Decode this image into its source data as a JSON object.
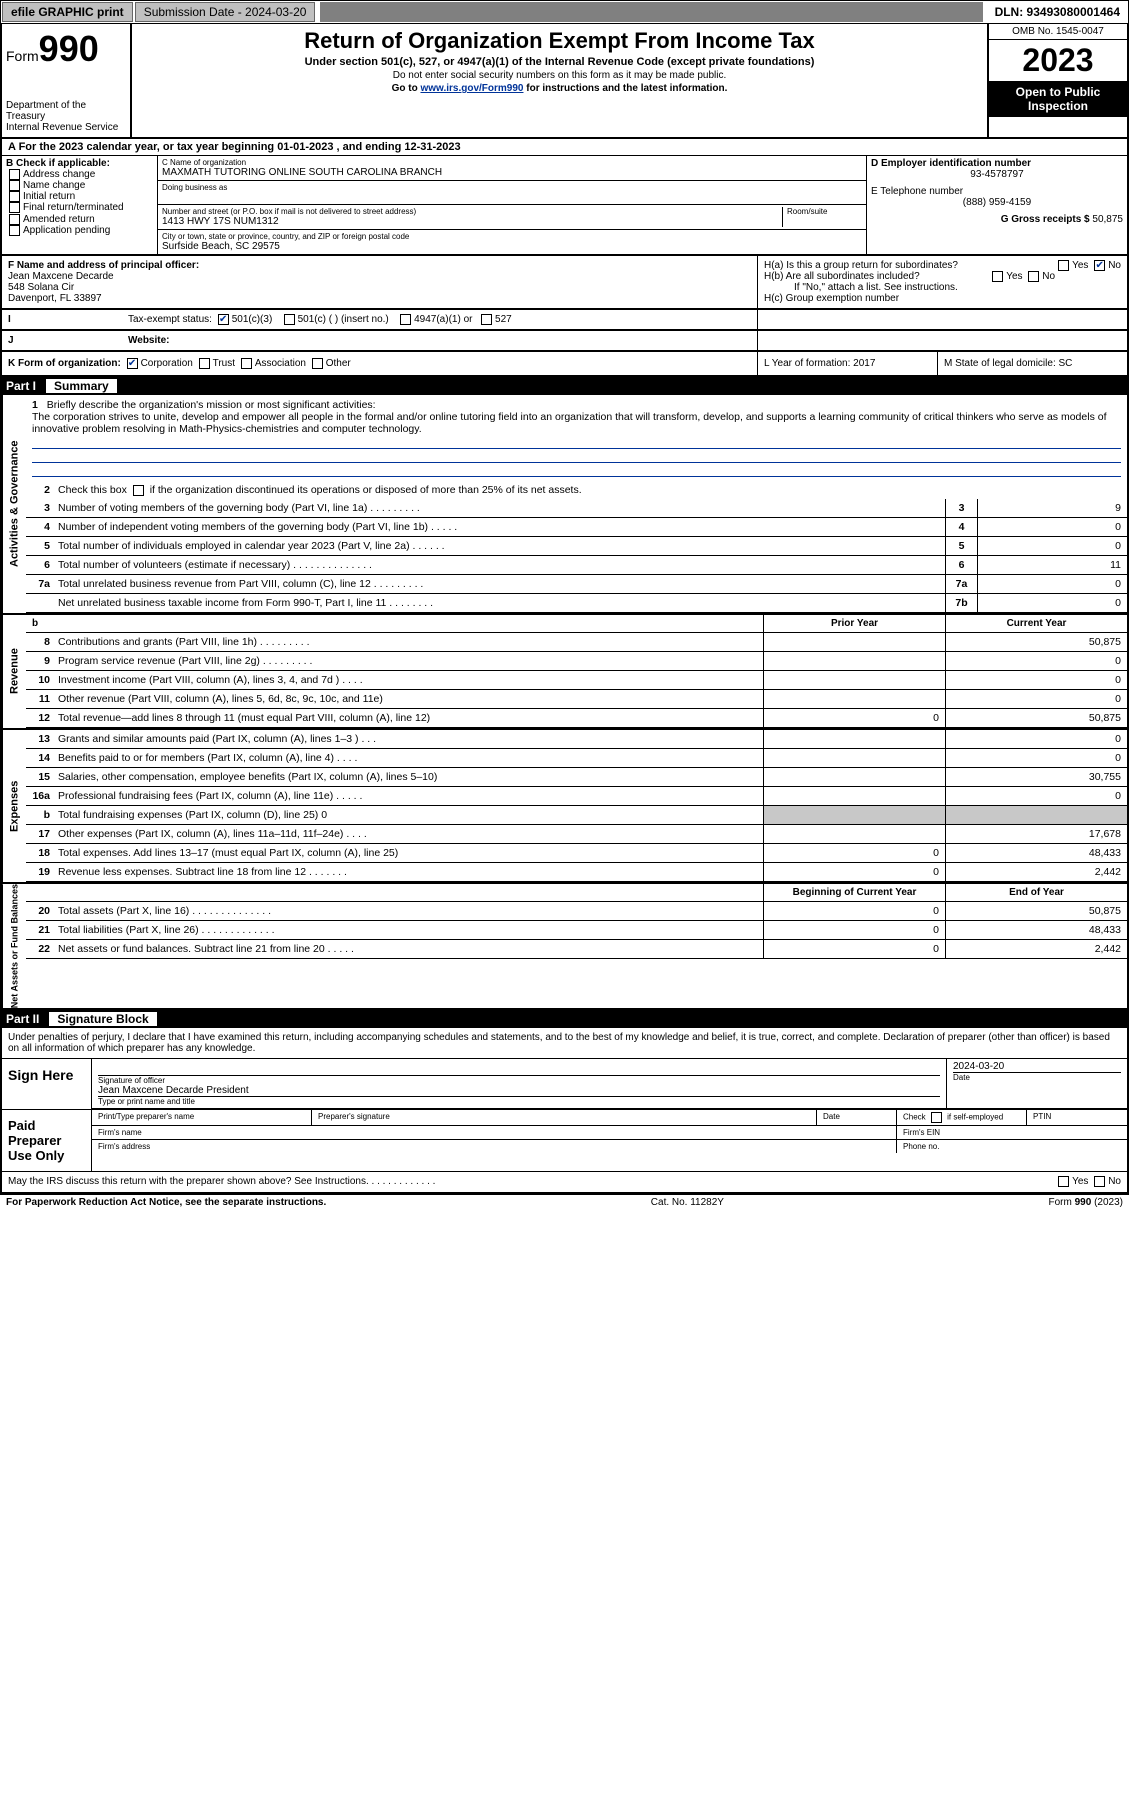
{
  "topbar": {
    "print": "efile GRAPHIC print",
    "submission_label": "Submission Date - 2024-03-20",
    "dln": "DLN: 93493080001464"
  },
  "header": {
    "form_label": "Form",
    "form_number": "990",
    "dept": "Department of the Treasury",
    "irs": "Internal Revenue Service",
    "title": "Return of Organization Exempt From Income Tax",
    "subtitle": "Under section 501(c), 527, or 4947(a)(1) of the Internal Revenue Code (except private foundations)",
    "note1": "Do not enter social security numbers on this form as it may be made public.",
    "note2_pre": "Go to ",
    "note2_link": "www.irs.gov/Form990",
    "note2_post": " for instructions and the latest information.",
    "omb": "OMB No. 1545-0047",
    "year": "2023",
    "inspection": "Open to Public Inspection"
  },
  "line_a": "A For the 2023 calendar year, or tax year beginning 01-01-2023   , and ending 12-31-2023",
  "section_b": {
    "header": "B Check if applicable:",
    "items": [
      "Address change",
      "Name change",
      "Initial return",
      "Final return/terminated",
      "Amended return",
      "Application pending"
    ],
    "c_name_label": "C Name of organization",
    "c_name": "MAXMATH TUTORING ONLINE SOUTH CAROLINA BRANCH",
    "dba_label": "Doing business as",
    "addr_label": "Number and street (or P.O. box if mail is not delivered to street address)",
    "room_label": "Room/suite",
    "addr": "1413 HWY 17S NUM1312",
    "city_label": "City or town, state or province, country, and ZIP or foreign postal code",
    "city": "Surfside Beach, SC  29575",
    "d_label": "D Employer identification number",
    "d_ein": "93-4578797",
    "e_label": "E Telephone number",
    "e_phone": "(888) 959-4159",
    "g_label": "G Gross receipts $",
    "g_amount": "50,875"
  },
  "section_f": {
    "label": "F Name and address of principal officer:",
    "name": "Jean Maxcene Decarde",
    "addr1": "548 Solana Cir",
    "addr2": "Davenport, FL  33897"
  },
  "section_h": {
    "ha": "H(a)  Is this a group return for subordinates?",
    "hb": "H(b)  Are all subordinates included?",
    "hb_note": "If \"No,\" attach a list. See instructions.",
    "hc": "H(c)  Group exemption number",
    "yes": "Yes",
    "no": "No"
  },
  "row_i": {
    "label": "Tax-exempt status:",
    "opts": {
      "a": "501(c)(3)",
      "b": "501(c) (  ) (insert no.)",
      "c": "4947(a)(1) or",
      "d": "527"
    }
  },
  "row_j": {
    "label": "Website:"
  },
  "row_k": {
    "label": "K Form of organization:",
    "opts": [
      "Corporation",
      "Trust",
      "Association",
      "Other"
    ],
    "l": "L Year of formation: 2017",
    "m": "M State of legal domicile: SC"
  },
  "part1": {
    "header_num": "Part I",
    "header_title": "Summary",
    "mission_label": "Briefly describe the organization's mission or most significant activities:",
    "mission": "The corporation strives to unite, develop and empower all people in the formal and/or online tutoring field into an organization that will transform, develop, and supports a learning community of critical thinkers who serve as models of innovative problem resolving in Math-Physics-chemistries and computer technology.",
    "line2": "Check this box           if the organization discontinued its operations or disposed of more than 25% of its net assets.",
    "rows_gov": [
      {
        "n": "3",
        "t": "Number of voting members of the governing body (Part VI, line 1a)   .    .    .    .    .    .    .    .    .",
        "box": "3",
        "v": "9"
      },
      {
        "n": "4",
        "t": "Number of independent voting members of the governing body (Part VI, line 1b)  .    .    .    .    .",
        "box": "4",
        "v": "0"
      },
      {
        "n": "5",
        "t": "Total number of individuals employed in calendar year 2023 (Part V, line 2a)   .    .    .    .    .    .",
        "box": "5",
        "v": "0"
      },
      {
        "n": "6",
        "t": "Total number of volunteers (estimate if necessary)   .    .    .    .    .    .    .    .    .    .    .    .    .    .",
        "box": "6",
        "v": "11"
      },
      {
        "n": "7a",
        "t": "Total unrelated business revenue from Part VIII, column (C), line 12   .    .    .    .    .    .    .    .    .",
        "box": "7a",
        "v": "0"
      },
      {
        "n": "",
        "t": "Net unrelated business taxable income from Form 990-T, Part I, line 11   .    .    .    .    .    .    .    .",
        "box": "7b",
        "v": "0"
      }
    ],
    "col_head_prior": "Prior Year",
    "col_head_current": "Current Year",
    "rows_rev": [
      {
        "n": "8",
        "t": "Contributions and grants (Part VIII, line 1h)    .    .    .    .    .    .    .    .    .",
        "p": "",
        "c": "50,875"
      },
      {
        "n": "9",
        "t": "Program service revenue (Part VIII, line 2g)   .    .    .    .    .    .    .    .    .",
        "p": "",
        "c": "0"
      },
      {
        "n": "10",
        "t": "Investment income (Part VIII, column (A), lines 3, 4, and 7d )    .    .    .    .",
        "p": "",
        "c": "0"
      },
      {
        "n": "11",
        "t": "Other revenue (Part VIII, column (A), lines 5, 6d, 8c, 9c, 10c, and 11e)",
        "p": "",
        "c": "0"
      },
      {
        "n": "12",
        "t": "Total revenue—add lines 8 through 11 (must equal Part VIII, column (A), line 12)",
        "p": "0",
        "c": "50,875"
      }
    ],
    "rows_exp": [
      {
        "n": "13",
        "t": "Grants and similar amounts paid (Part IX, column (A), lines 1–3 )   .    .    .",
        "p": "",
        "c": "0"
      },
      {
        "n": "14",
        "t": "Benefits paid to or for members (Part IX, column (A), line 4)   .    .    .    .",
        "p": "",
        "c": "0"
      },
      {
        "n": "15",
        "t": "Salaries, other compensation, employee benefits (Part IX, column (A), lines 5–10)",
        "p": "",
        "c": "30,755"
      },
      {
        "n": "16a",
        "t": "Professional fundraising fees (Part IX, column (A), line 11e)    .    .    .    .    .",
        "p": "",
        "c": "0"
      },
      {
        "n": "b",
        "t": "Total fundraising expenses (Part IX, column (D), line 25) 0",
        "p": "shade",
        "c": "shade"
      },
      {
        "n": "17",
        "t": "Other expenses (Part IX, column (A), lines 11a–11d, 11f–24e)    .    .    .    .",
        "p": "",
        "c": "17,678"
      },
      {
        "n": "18",
        "t": "Total expenses. Add lines 13–17 (must equal Part IX, column (A), line 25)",
        "p": "0",
        "c": "48,433"
      },
      {
        "n": "19",
        "t": "Revenue less expenses. Subtract line 18 from line 12   .    .    .    .    .    .    .",
        "p": "0",
        "c": "2,442"
      }
    ],
    "col_head_begin": "Beginning of Current Year",
    "col_head_end": "End of Year",
    "rows_net": [
      {
        "n": "20",
        "t": "Total assets (Part X, line 16)   .    .    .    .    .    .    .    .    .    .    .    .    .    .",
        "p": "0",
        "c": "50,875"
      },
      {
        "n": "21",
        "t": "Total liabilities (Part X, line 26)   .    .    .    .    .    .    .    .    .    .    .    .    .",
        "p": "0",
        "c": "48,433"
      },
      {
        "n": "22",
        "t": "Net assets or fund balances. Subtract line 21 from line 20   .    .    .    .    .",
        "p": "0",
        "c": "2,442"
      }
    ]
  },
  "part2": {
    "header_num": "Part II",
    "header_title": "Signature Block",
    "declaration": "Under penalties of perjury, I declare that I have examined this return, including accompanying schedules and statements, and to the best of my knowledge and belief, it is true, correct, and complete. Declaration of preparer (other than officer) is based on all information of which preparer has any knowledge.",
    "sign_here": "Sign Here",
    "sig_officer": "Signature of officer",
    "officer_name": "Jean Maxcene Decarde  President",
    "type_name": "Type or print name and title",
    "date_label": "Date",
    "date_val": "2024-03-20",
    "paid": "Paid Preparer Use Only",
    "print_name": "Print/Type preparer's name",
    "prep_sig": "Preparer's signature",
    "check_if": "Check           if self-employed",
    "ptin": "PTIN",
    "firm_name": "Firm's name",
    "firm_ein": "Firm's EIN",
    "firm_addr": "Firm's address",
    "phone": "Phone no.",
    "discuss": "May the IRS discuss this return with the preparer shown above? See Instructions.    .    .    .    .    .    .    .    .    .    .    .    .",
    "yes": "Yes",
    "no": "No"
  },
  "footer": {
    "left": "For Paperwork Reduction Act Notice, see the separate instructions.",
    "mid": "Cat. No. 11282Y",
    "right": "Form 990 (2023)"
  }
}
